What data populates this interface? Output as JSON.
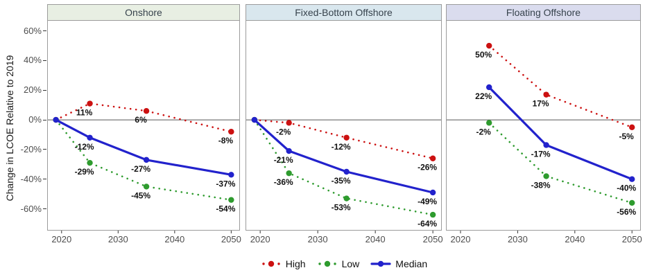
{
  "chart_data": {
    "type": "line",
    "title": "",
    "xlabel": "",
    "ylabel": "Change in LCOE Relative to 2019",
    "grid": "off",
    "legend_position": "bottom",
    "xlim": [
      2017.45,
      2051.55
    ],
    "ylim": [
      -74.7,
      67.3
    ],
    "x_tick_years": [
      2020,
      2030,
      2040,
      2050
    ],
    "x_tick_labels": [
      "2020",
      "2030",
      "2040",
      "2050"
    ],
    "y_tick_values": [
      60,
      40,
      20,
      0,
      -20,
      -40,
      -60
    ],
    "y_tick_labels": [
      "60%",
      "40%",
      "20%",
      "0%",
      "-20%",
      "-40%",
      "-60%"
    ],
    "legend": [
      {
        "label": "High",
        "color": "#CC1111",
        "style": "dotted"
      },
      {
        "label": "Low",
        "color": "#2E9B2E",
        "style": "dotted"
      },
      {
        "label": "Median",
        "color": "#2222CC",
        "style": "solid"
      }
    ],
    "colors": {
      "panel_border": "#9B9B9B",
      "header_text": "#36424C",
      "axis_text": "#4D4D4D",
      "zero_line": "#555555",
      "data_label": "#111111",
      "onshore_header_fill": "#E8EFE3",
      "fixed_bottom_header_fill": "#D9E7EE",
      "floating_header_fill": "#DADCEE"
    },
    "panels": [
      {
        "title": "Onshore",
        "header_fill": "#E8EFE3",
        "series": [
          {
            "name": "High",
            "x": [
              2019,
              2025,
              2035,
              2050
            ],
            "y": [
              0,
              11,
              6,
              -8
            ],
            "labels": [
              "",
              "11%",
              "6%",
              "-8%"
            ]
          },
          {
            "name": "Low",
            "x": [
              2019,
              2025,
              2035,
              2050
            ],
            "y": [
              0,
              -29,
              -45,
              -54
            ],
            "labels": [
              "",
              "-29%",
              "-45%",
              "-54%"
            ]
          },
          {
            "name": "Median",
            "x": [
              2019,
              2025,
              2035,
              2050
            ],
            "y": [
              0,
              -12,
              -27,
              -37
            ],
            "labels": [
              "",
              "-12%",
              "-27%",
              "-37%"
            ]
          }
        ]
      },
      {
        "title": "Fixed-Bottom Offshore",
        "header_fill": "#D9E7EE",
        "series": [
          {
            "name": "High",
            "x": [
              2019,
              2025,
              2035,
              2050
            ],
            "y": [
              0,
              -2,
              -12,
              -26
            ],
            "labels": [
              "",
              "-2%",
              "-12%",
              "-26%"
            ]
          },
          {
            "name": "Low",
            "x": [
              2019,
              2025,
              2035,
              2050
            ],
            "y": [
              0,
              -36,
              -53,
              -64
            ],
            "labels": [
              "",
              "-36%",
              "-53%",
              "-64%"
            ]
          },
          {
            "name": "Median",
            "x": [
              2019,
              2025,
              2035,
              2050
            ],
            "y": [
              0,
              -21,
              -35,
              -49
            ],
            "labels": [
              "",
              "-21%",
              "-35%",
              "-49%"
            ]
          }
        ]
      },
      {
        "title": "Floating Offshore",
        "header_fill": "#DADCEE",
        "series": [
          {
            "name": "High",
            "x": [
              2025,
              2035,
              2050
            ],
            "y": [
              50,
              17,
              -5
            ],
            "labels": [
              "50%",
              "17%",
              "-5%"
            ]
          },
          {
            "name": "Low",
            "x": [
              2025,
              2035,
              2050
            ],
            "y": [
              -2,
              -38,
              -56
            ],
            "labels": [
              "-2%",
              "-38%",
              "-56%"
            ]
          },
          {
            "name": "Median",
            "x": [
              2025,
              2035,
              2050
            ],
            "y": [
              22,
              -17,
              -40
            ],
            "labels": [
              "22%",
              "-17%",
              "-40%"
            ]
          }
        ]
      }
    ]
  }
}
